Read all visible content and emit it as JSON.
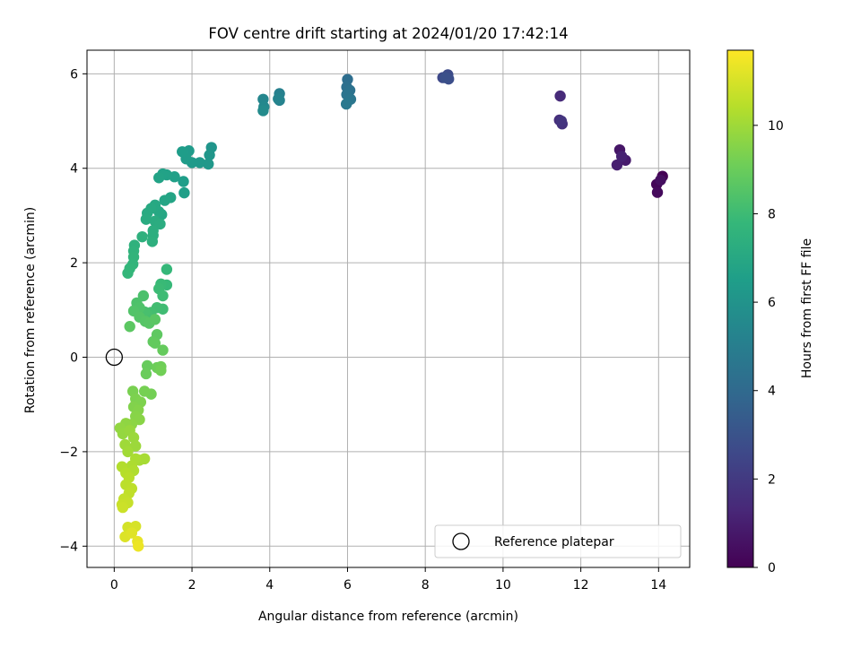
{
  "chart_data": {
    "type": "scatter",
    "title": "FOV centre drift starting at 2024/01/20 17:42:14",
    "xlabel": "Angular distance from reference (arcmin)",
    "ylabel": "Rotation from reference (arcmin)",
    "xlim": [
      -0.7,
      14.8
    ],
    "ylim": [
      -4.45,
      6.5
    ],
    "xticks": [
      0,
      2,
      4,
      6,
      8,
      10,
      12,
      14
    ],
    "yticks": [
      -4,
      -2,
      0,
      2,
      4,
      6
    ],
    "grid": true,
    "legend": {
      "location": "lower-right",
      "entries": [
        "Reference platepar"
      ]
    },
    "reference_point": {
      "x": 0,
      "y": 0,
      "marker": "open-circle",
      "label": "Reference platepar"
    },
    "colorbar": {
      "label": "Hours from first FF file",
      "colormap": "viridis",
      "range": [
        0,
        11.7
      ],
      "ticks": [
        0,
        2,
        4,
        6,
        8,
        10
      ]
    },
    "colorbar_colors": [
      "#440154",
      "#482878",
      "#3e4989",
      "#31688e",
      "#26828e",
      "#1f9e89",
      "#35b779",
      "#6ece58",
      "#b5de2b",
      "#fde725"
    ],
    "series": [
      {
        "points": [
          [
            14.1,
            3.83,
            0.0
          ],
          [
            13.95,
            3.66,
            0.15
          ],
          [
            13.97,
            3.49,
            0.3
          ],
          [
            14.05,
            3.75,
            0.45
          ],
          [
            13.0,
            4.39,
            0.7
          ],
          [
            13.15,
            4.17,
            0.85
          ],
          [
            12.93,
            4.07,
            1.0
          ],
          [
            13.05,
            4.25,
            1.1
          ],
          [
            11.47,
            5.53,
            1.4
          ],
          [
            11.45,
            5.02,
            1.55
          ],
          [
            11.52,
            4.94,
            1.7
          ],
          [
            11.5,
            5.0,
            1.8
          ],
          [
            8.45,
            5.92,
            2.6
          ],
          [
            8.58,
            5.98,
            2.7
          ],
          [
            8.6,
            5.89,
            2.8
          ],
          [
            8.52,
            5.92,
            2.9
          ],
          [
            6.0,
            5.88,
            4.2
          ],
          [
            5.98,
            5.72,
            4.3
          ],
          [
            6.06,
            5.65,
            4.4
          ],
          [
            5.98,
            5.56,
            4.5
          ],
          [
            6.08,
            5.46,
            4.6
          ],
          [
            5.97,
            5.36,
            4.7
          ],
          [
            4.25,
            5.58,
            5.1
          ],
          [
            4.25,
            5.44,
            5.2
          ],
          [
            4.22,
            5.47,
            5.3
          ],
          [
            3.83,
            5.46,
            5.4
          ],
          [
            3.85,
            5.3,
            5.5
          ],
          [
            3.83,
            5.22,
            5.6
          ],
          [
            2.5,
            4.44,
            6.1
          ],
          [
            2.45,
            4.28,
            6.15
          ],
          [
            2.42,
            4.09,
            6.2
          ],
          [
            2.2,
            4.12,
            6.25
          ],
          [
            2.0,
            4.12,
            6.3
          ],
          [
            1.92,
            4.37,
            6.35
          ],
          [
            1.85,
            4.2,
            6.4
          ],
          [
            1.75,
            4.35,
            6.45
          ],
          [
            1.78,
            3.72,
            6.5
          ],
          [
            1.8,
            3.48,
            6.55
          ],
          [
            1.55,
            3.82,
            6.6
          ],
          [
            1.35,
            3.86,
            6.65
          ],
          [
            1.25,
            3.88,
            6.7
          ],
          [
            1.15,
            3.8,
            6.75
          ],
          [
            1.45,
            3.38,
            6.8
          ],
          [
            1.3,
            3.32,
            6.85
          ],
          [
            1.22,
            3.02,
            6.9
          ],
          [
            1.15,
            3.08,
            6.95
          ],
          [
            1.05,
            3.22,
            7.0
          ],
          [
            0.95,
            3.15,
            7.05
          ],
          [
            0.85,
            3.05,
            7.1
          ],
          [
            0.82,
            2.92,
            7.15
          ],
          [
            1.05,
            2.88,
            7.2
          ],
          [
            1.18,
            2.82,
            7.25
          ],
          [
            1.0,
            2.68,
            7.3
          ],
          [
            1.0,
            2.58,
            7.35
          ],
          [
            0.98,
            2.45,
            7.4
          ],
          [
            0.72,
            2.55,
            7.45
          ],
          [
            0.52,
            2.37,
            7.5
          ],
          [
            0.5,
            2.25,
            7.55
          ],
          [
            0.5,
            2.12,
            7.6
          ],
          [
            0.48,
            1.97,
            7.65
          ],
          [
            0.4,
            1.88,
            7.7
          ],
          [
            0.35,
            1.78,
            7.75
          ],
          [
            1.35,
            1.86,
            7.8
          ],
          [
            1.35,
            1.53,
            7.85
          ],
          [
            1.2,
            1.55,
            7.9
          ],
          [
            1.15,
            1.45,
            7.95
          ],
          [
            1.25,
            1.3,
            8.0
          ],
          [
            1.25,
            1.02,
            8.05
          ],
          [
            1.1,
            1.05,
            8.1
          ],
          [
            0.95,
            0.95,
            8.15
          ],
          [
            0.85,
            0.9,
            8.2
          ],
          [
            0.78,
            0.96,
            8.25
          ],
          [
            0.75,
            1.3,
            8.3
          ],
          [
            0.58,
            1.15,
            8.35
          ],
          [
            0.65,
            1.05,
            8.4
          ],
          [
            0.5,
            0.98,
            8.45
          ],
          [
            0.65,
            0.85,
            8.5
          ],
          [
            0.8,
            0.76,
            8.55
          ],
          [
            0.9,
            0.72,
            8.6
          ],
          [
            1.05,
            0.8,
            8.65
          ],
          [
            0.4,
            0.65,
            8.7
          ],
          [
            1.1,
            0.48,
            8.75
          ],
          [
            1.0,
            0.33,
            8.8
          ],
          [
            1.05,
            0.3,
            8.85
          ],
          [
            1.25,
            0.15,
            8.9
          ],
          [
            0.85,
            -0.18,
            8.95
          ],
          [
            0.82,
            -0.35,
            9.0
          ],
          [
            1.1,
            -0.22,
            9.05
          ],
          [
            1.2,
            -0.2,
            9.1
          ],
          [
            1.2,
            -0.28,
            9.15
          ],
          [
            0.95,
            -0.78,
            9.2
          ],
          [
            0.78,
            -0.72,
            9.25
          ],
          [
            0.48,
            -0.72,
            9.3
          ],
          [
            0.55,
            -0.88,
            9.35
          ],
          [
            0.68,
            -0.95,
            9.4
          ],
          [
            0.5,
            -1.05,
            9.45
          ],
          [
            0.62,
            -1.12,
            9.5
          ],
          [
            0.55,
            -1.25,
            9.55
          ],
          [
            0.65,
            -1.32,
            9.6
          ],
          [
            0.45,
            -1.42,
            9.65
          ],
          [
            0.3,
            -1.4,
            9.7
          ],
          [
            0.15,
            -1.5,
            9.75
          ],
          [
            0.22,
            -1.62,
            9.8
          ],
          [
            0.4,
            -1.55,
            9.85
          ],
          [
            0.5,
            -1.7,
            9.9
          ],
          [
            0.55,
            -1.88,
            9.95
          ],
          [
            0.28,
            -1.85,
            10.0
          ],
          [
            0.35,
            -2.0,
            10.05
          ],
          [
            0.65,
            -2.18,
            10.1
          ],
          [
            0.78,
            -2.15,
            10.15
          ],
          [
            0.55,
            -2.15,
            10.2
          ],
          [
            0.45,
            -2.3,
            10.25
          ],
          [
            0.5,
            -2.4,
            10.3
          ],
          [
            0.2,
            -2.32,
            10.35
          ],
          [
            0.3,
            -2.45,
            10.4
          ],
          [
            0.38,
            -2.55,
            10.45
          ],
          [
            0.3,
            -2.7,
            10.5
          ],
          [
            0.45,
            -2.78,
            10.55
          ],
          [
            0.38,
            -2.88,
            10.6
          ],
          [
            0.25,
            -3.0,
            10.65
          ],
          [
            0.35,
            -3.08,
            10.7
          ],
          [
            0.2,
            -3.12,
            10.75
          ],
          [
            0.22,
            -3.18,
            10.8
          ],
          [
            0.35,
            -3.6,
            10.95
          ],
          [
            0.55,
            -3.58,
            11.0
          ],
          [
            0.28,
            -3.8,
            11.1
          ],
          [
            0.45,
            -3.72,
            11.15
          ],
          [
            0.6,
            -3.9,
            11.3
          ],
          [
            0.62,
            -4.0,
            11.4
          ]
        ]
      }
    ]
  }
}
